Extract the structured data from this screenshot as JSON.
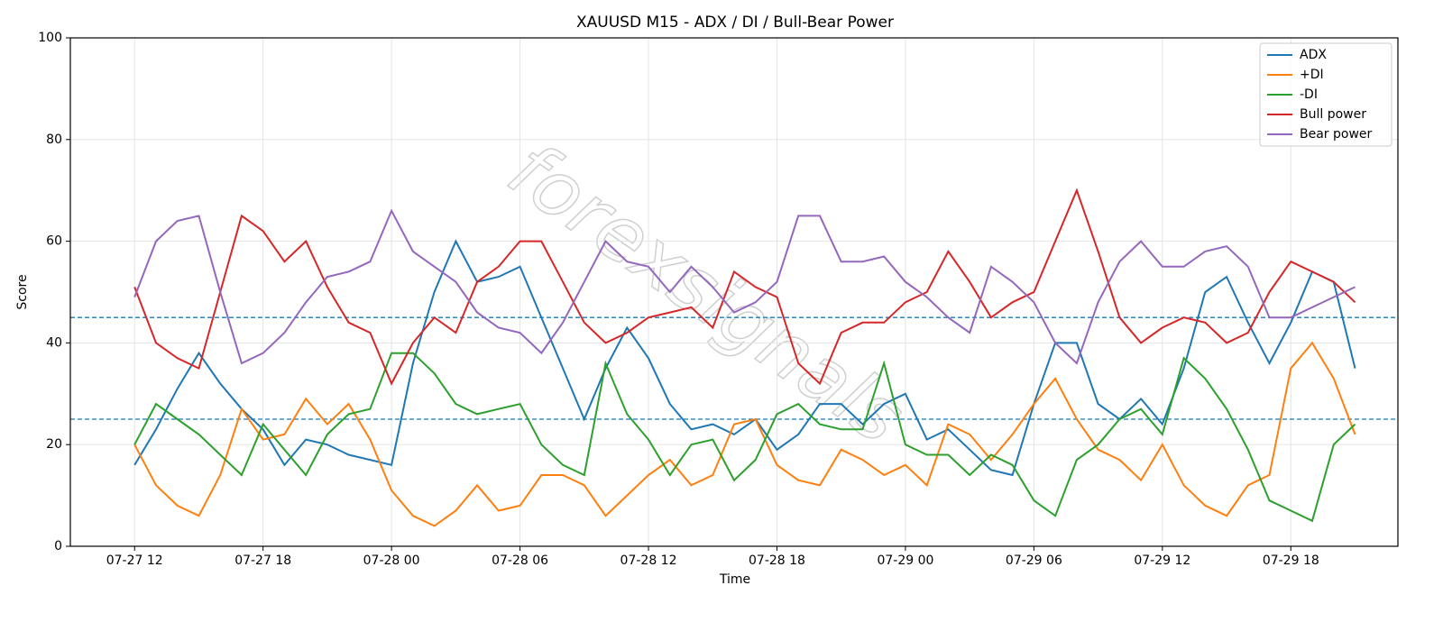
{
  "chart_data": {
    "type": "line",
    "title": "XAUUSD M15 - ADX / DI / Bull-Bear Power",
    "xlabel": "Time",
    "ylabel": "Score",
    "watermark": "forexsignals",
    "x": [
      "07-27 12",
      "07-27 13",
      "07-27 14",
      "07-27 15",
      "07-27 16",
      "07-27 17",
      "07-27 18",
      "07-27 19",
      "07-27 20",
      "07-27 21",
      "07-27 22",
      "07-27 23",
      "07-28 00",
      "07-28 01",
      "07-28 02",
      "07-28 03",
      "07-28 04",
      "07-28 05",
      "07-28 06",
      "07-28 07",
      "07-28 08",
      "07-28 09",
      "07-28 10",
      "07-28 11",
      "07-28 12",
      "07-28 13",
      "07-28 14",
      "07-28 15",
      "07-28 16",
      "07-28 17",
      "07-28 18",
      "07-28 19",
      "07-28 20",
      "07-28 21",
      "07-28 22",
      "07-28 23",
      "07-29 00",
      "07-29 01",
      "07-29 02",
      "07-29 03",
      "07-29 04",
      "07-29 05",
      "07-29 06",
      "07-29 07",
      "07-29 08",
      "07-29 09",
      "07-29 10",
      "07-29 11",
      "07-29 12",
      "07-29 13",
      "07-29 14",
      "07-29 15",
      "07-29 16",
      "07-29 17",
      "07-29 18",
      "07-29 19",
      "07-29 20",
      "07-29 21"
    ],
    "series": [
      {
        "name": "ADX",
        "color": "#1f77b4",
        "values": [
          16,
          23,
          31,
          38,
          32,
          27,
          23,
          16,
          21,
          20,
          18,
          17,
          16,
          36,
          50,
          60,
          52,
          53,
          55,
          45,
          35,
          25,
          35,
          43,
          37,
          28,
          23,
          24,
          22,
          25,
          19,
          22,
          28,
          28,
          24,
          28,
          30,
          21,
          23,
          19,
          15,
          14,
          28,
          40,
          40,
          28,
          25,
          29,
          24,
          35,
          50,
          53,
          44,
          36,
          44,
          54,
          52,
          35
        ]
      },
      {
        "name": "+DI",
        "color": "#ff7f0e",
        "values": [
          20,
          12,
          8,
          6,
          14,
          27,
          21,
          22,
          29,
          24,
          28,
          21,
          11,
          6,
          4,
          7,
          12,
          7,
          8,
          14,
          14,
          12,
          6,
          10,
          14,
          17,
          12,
          14,
          24,
          25,
          16,
          13,
          12,
          19,
          17,
          14,
          16,
          12,
          24,
          22,
          17,
          22,
          28,
          33,
          25,
          19,
          17,
          13,
          20,
          12,
          8,
          6,
          12,
          14,
          35,
          40,
          33,
          22
        ]
      },
      {
        "name": "-DI",
        "color": "#2ca02c",
        "values": [
          20,
          28,
          25,
          22,
          18,
          14,
          24,
          19,
          14,
          22,
          26,
          27,
          38,
          38,
          34,
          28,
          26,
          27,
          28,
          20,
          16,
          14,
          36,
          26,
          21,
          14,
          20,
          21,
          13,
          17,
          26,
          28,
          24,
          23,
          23,
          36,
          20,
          18,
          18,
          14,
          18,
          16,
          9,
          6,
          17,
          20,
          25,
          27,
          22,
          37,
          33,
          27,
          19,
          9,
          7,
          5,
          20,
          24
        ]
      },
      {
        "name": "Bull power",
        "color": "#d62728",
        "values": [
          51,
          40,
          37,
          35,
          50,
          65,
          62,
          56,
          60,
          51,
          44,
          42,
          32,
          40,
          45,
          42,
          52,
          55,
          60,
          60,
          52,
          44,
          40,
          42,
          45,
          46,
          47,
          43,
          54,
          51,
          49,
          36,
          32,
          42,
          44,
          44,
          48,
          50,
          58,
          52,
          45,
          48,
          50,
          60,
          70,
          58,
          45,
          40,
          43,
          45,
          44,
          40,
          42,
          50,
          56,
          54,
          52,
          48
        ]
      },
      {
        "name": "Bear power",
        "color": "#9467bd",
        "values": [
          49,
          60,
          64,
          65,
          50,
          36,
          38,
          42,
          48,
          53,
          54,
          56,
          66,
          58,
          55,
          52,
          46,
          43,
          42,
          38,
          44,
          52,
          60,
          56,
          55,
          50,
          55,
          51,
          46,
          48,
          52,
          65,
          65,
          56,
          56,
          57,
          52,
          49,
          45,
          42,
          55,
          52,
          48,
          40,
          36,
          48,
          56,
          60,
          55,
          55,
          58,
          59,
          55,
          45,
          45,
          47,
          49,
          51
        ]
      }
    ],
    "xlim": [
      "07-27 09",
      "07-29 23"
    ],
    "xticks": [
      "07-27 12",
      "07-27 18",
      "07-28 00",
      "07-28 06",
      "07-28 12",
      "07-28 18",
      "07-29 00",
      "07-29 06",
      "07-29 12",
      "07-29 18"
    ],
    "ylim": [
      0,
      100
    ],
    "yticks": [
      0,
      20,
      40,
      60,
      80,
      100
    ],
    "hlines": [
      {
        "value": 25,
        "color": "#1f77b4"
      },
      {
        "value": 45,
        "color": "#1f77b4"
      }
    ],
    "grid": true,
    "legend": "upper right"
  }
}
